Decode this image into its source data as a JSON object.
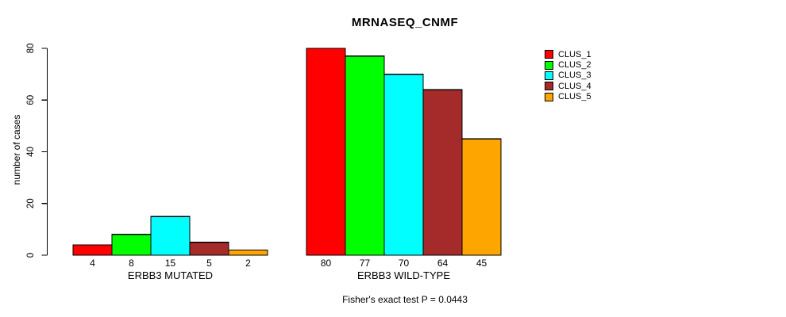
{
  "chart_data": {
    "type": "bar",
    "title": "MRNASEQ_CNMF",
    "ylabel": "number of cases",
    "xlabel": "",
    "ylim": [
      0,
      80
    ],
    "y_ticks": [
      0,
      20,
      40,
      60,
      80
    ],
    "grid": false,
    "legend_position": "top-right",
    "bar_border_color": "#000000",
    "background_color": "#ffffff",
    "series": [
      {
        "name": "CLUS_1",
        "color": "#FF0000"
      },
      {
        "name": "CLUS_2",
        "color": "#00FF00"
      },
      {
        "name": "CLUS_3",
        "color": "#00FFFF"
      },
      {
        "name": "CLUS_4",
        "color": "#A52A2A"
      },
      {
        "name": "CLUS_5",
        "color": "#FFA500"
      }
    ],
    "groups": [
      {
        "label": "ERBB3 MUTATED",
        "values": [
          4,
          8,
          15,
          5,
          2
        ]
      },
      {
        "label": "ERBB3 WILD-TYPE",
        "values": [
          80,
          77,
          70,
          64,
          45
        ]
      }
    ],
    "bar_value_labels_shown": true,
    "annotation": "Fisher's exact test P = 0.0443"
  }
}
